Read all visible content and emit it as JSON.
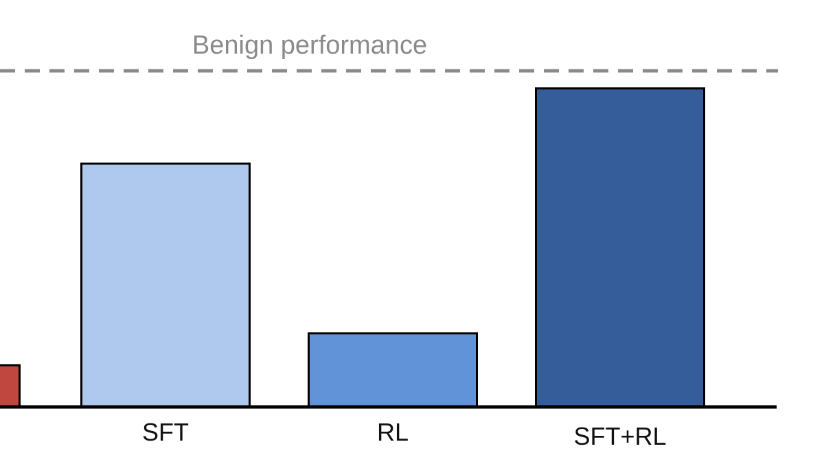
{
  "chart_data": {
    "type": "bar",
    "categories": [
      "",
      "SFT",
      "RL",
      "SFT+RL"
    ],
    "values": [
      0.13,
      0.76,
      0.23,
      0.995
    ],
    "colors": [
      "#c0473f",
      "#aec8ee",
      "#6093d8",
      "#345d9a"
    ],
    "title": "",
    "xlabel": "",
    "ylabel": "",
    "ylim": [
      0,
      1.05
    ],
    "grid": false,
    "legend": "none",
    "reference_line": {
      "label": "Benign performance",
      "value": 1.05,
      "style": "dashed",
      "color": "#8a8a8a"
    }
  }
}
